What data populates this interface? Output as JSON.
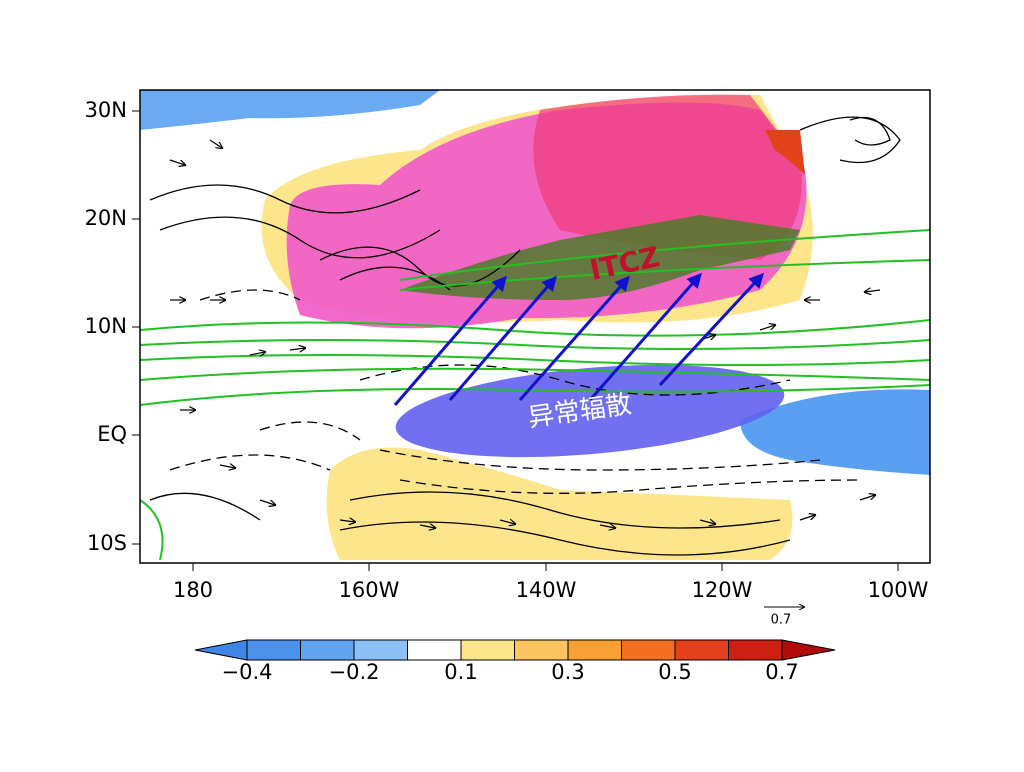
{
  "axes": {
    "y_labels": [
      "30N",
      "20N",
      "10N",
      "EQ",
      "10S"
    ],
    "x_labels": [
      "180",
      "160W",
      "140W",
      "120W",
      "100W"
    ]
  },
  "annotations": {
    "itcz": "ITCZ",
    "divergence": "异常辐散"
  },
  "reference_vector": {
    "label": "0.7"
  },
  "colorbar": {
    "labels": [
      "−0.4",
      "−0.2",
      "0.1",
      "0.3",
      "0.5",
      "0.7"
    ],
    "colors": [
      "#3f86e6",
      "#4b93ea",
      "#62a4f0",
      "#8dc0f6",
      "#ffffff",
      "#fde58c",
      "#fcc560",
      "#f9a032",
      "#f46f22",
      "#e4401a",
      "#cf1f12",
      "#b00a0a"
    ]
  }
}
